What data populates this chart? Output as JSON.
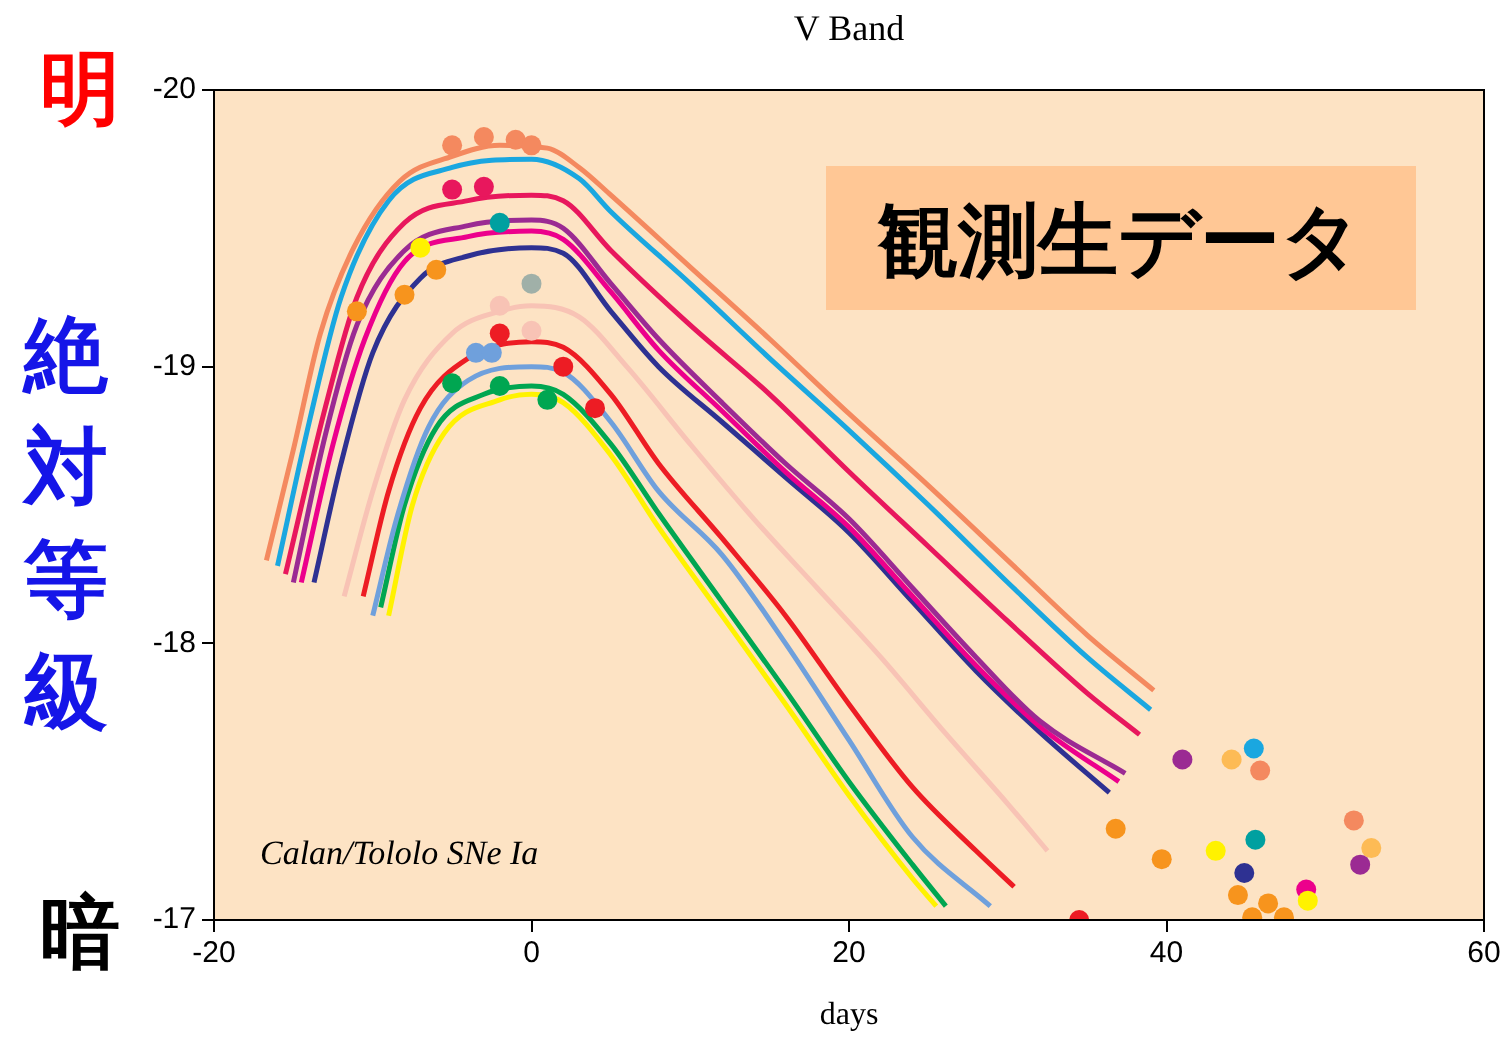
{
  "chart_data": {
    "type": "line",
    "title": "V Band",
    "xlabel": "days",
    "ylabel": "絶対等級",
    "annotations": [
      "観測生データ",
      "Calan/Tololo SNe Ia",
      "明",
      "暗"
    ],
    "xlim": [
      -20,
      60
    ],
    "xticks": [
      -20,
      0,
      20,
      40,
      60
    ],
    "ylim": [
      -17,
      -20
    ],
    "yticks": [
      -20,
      -19,
      -18,
      -17
    ],
    "marker": "none",
    "line_style": "solid",
    "series": [
      {
        "color": "#f4895f",
        "x": [
          -16.7,
          -15,
          -13.3,
          -11.2,
          -8.3,
          -5,
          -2,
          1,
          3,
          5,
          10,
          15,
          20,
          25,
          30,
          35,
          39.2
        ],
        "values": [
          -18.3,
          -18.7,
          -19.12,
          -19.43,
          -19.67,
          -19.76,
          -19.8,
          -19.79,
          -19.72,
          -19.62,
          -19.36,
          -19.1,
          -18.83,
          -18.57,
          -18.3,
          -18.03,
          -17.83
        ]
      },
      {
        "color": "#1aa7e0",
        "x": [
          -16,
          -14,
          -12,
          -9,
          -5,
          0,
          3,
          5,
          10,
          15,
          20,
          25,
          30,
          35,
          39
        ],
        "values": [
          -18.28,
          -18.8,
          -19.25,
          -19.6,
          -19.72,
          -19.75,
          -19.68,
          -19.56,
          -19.3,
          -19.03,
          -18.77,
          -18.5,
          -18.22,
          -17.95,
          -17.76
        ]
      },
      {
        "color": "#e8175d",
        "x": [
          -15.5,
          -13,
          -11,
          -8,
          -4,
          0,
          2,
          5,
          10,
          15,
          20,
          25,
          30,
          35,
          38.3
        ],
        "values": [
          -18.25,
          -18.85,
          -19.25,
          -19.52,
          -19.6,
          -19.62,
          -19.6,
          -19.42,
          -19.15,
          -18.9,
          -18.62,
          -18.35,
          -18.08,
          -17.82,
          -17.67
        ]
      },
      {
        "color": "#9b2a93",
        "x": [
          -15,
          -13,
          -11,
          -8,
          -4,
          0,
          2,
          5,
          8,
          12,
          16,
          20,
          24,
          28,
          32,
          37.4
        ],
        "values": [
          -18.22,
          -18.75,
          -19.15,
          -19.42,
          -19.51,
          -19.53,
          -19.5,
          -19.3,
          -19.1,
          -18.87,
          -18.65,
          -18.45,
          -18.2,
          -17.95,
          -17.72,
          -17.53
        ]
      },
      {
        "color": "#ec008c",
        "x": [
          -14.5,
          -12.5,
          -10.5,
          -8,
          -4,
          0,
          2,
          5,
          8,
          12,
          16,
          20,
          24,
          28,
          32,
          37
        ],
        "values": [
          -18.22,
          -18.72,
          -19.1,
          -19.38,
          -19.47,
          -19.49,
          -19.46,
          -19.27,
          -19.06,
          -18.84,
          -18.62,
          -18.42,
          -18.17,
          -17.92,
          -17.7,
          -17.5
        ]
      },
      {
        "color": "#2e3192",
        "x": [
          -13.7,
          -12,
          -10,
          -7,
          -4,
          0,
          2,
          5,
          8,
          12,
          16,
          20,
          24,
          28,
          32,
          36.4
        ],
        "values": [
          -18.22,
          -18.65,
          -19.05,
          -19.32,
          -19.4,
          -19.43,
          -19.41,
          -19.2,
          -19.0,
          -18.8,
          -18.6,
          -18.4,
          -18.15,
          -17.9,
          -17.68,
          -17.46
        ]
      },
      {
        "color": "#f8c3b5",
        "x": [
          -11.8,
          -10,
          -8,
          -5,
          -2,
          0,
          3,
          6,
          10,
          14,
          18,
          22,
          26,
          30,
          32.5
        ],
        "values": [
          -18.17,
          -18.55,
          -18.88,
          -19.12,
          -19.2,
          -19.22,
          -19.18,
          -19.0,
          -18.72,
          -18.45,
          -18.2,
          -17.95,
          -17.68,
          -17.42,
          -17.25
        ]
      },
      {
        "color": "#ed1c24",
        "x": [
          -10.6,
          -9,
          -7,
          -4,
          0,
          2,
          5,
          8,
          12,
          16,
          20,
          24,
          28,
          30.4
        ],
        "values": [
          -18.17,
          -18.55,
          -18.85,
          -19.03,
          -19.09,
          -19.07,
          -18.9,
          -18.65,
          -18.38,
          -18.1,
          -17.78,
          -17.48,
          -17.25,
          -17.12
        ]
      },
      {
        "color": "#6fa0dc",
        "x": [
          -10,
          -8.5,
          -6.5,
          -4,
          0,
          2,
          5,
          8,
          12,
          16,
          20,
          24,
          28.9
        ],
        "values": [
          -18.1,
          -18.45,
          -18.78,
          -18.95,
          -19.0,
          -18.98,
          -18.8,
          -18.55,
          -18.32,
          -18.0,
          -17.65,
          -17.3,
          -17.05
        ]
      },
      {
        "color": "#fff200",
        "x": [
          -9,
          -7.5,
          -5.5,
          -2,
          0,
          2,
          5,
          8,
          12,
          16,
          20,
          24,
          25.5
        ],
        "values": [
          -18.1,
          -18.5,
          -18.76,
          -18.88,
          -18.9,
          -18.87,
          -18.68,
          -18.42,
          -18.1,
          -17.78,
          -17.45,
          -17.15,
          -17.05
        ]
      },
      {
        "color": "#00a651",
        "x": [
          -9.5,
          -8,
          -6,
          -3,
          0,
          2,
          5,
          8,
          12,
          16,
          20,
          24,
          26.1
        ],
        "values": [
          -18.13,
          -18.5,
          -18.78,
          -18.9,
          -18.93,
          -18.9,
          -18.72,
          -18.47,
          -18.15,
          -17.83,
          -17.5,
          -17.2,
          -17.05
        ]
      },
      {
        "type": "scatter",
        "marker": "circle",
        "x": [
          -5,
          -3,
          -1,
          0,
          -5,
          -3,
          -2,
          -7,
          -11,
          -8,
          -6,
          0,
          -2,
          0,
          -2,
          2,
          4,
          -3.5,
          -2.5,
          -5,
          -2,
          1,
          41,
          44.1,
          45.5,
          45.9,
          36.8,
          39.7,
          43.1,
          45.6,
          44.9,
          44.5,
          46.4,
          45.4,
          47.4,
          48.8,
          48.9,
          51.8,
          52.9,
          52.2,
          34.5
        ],
        "values": [
          -19.8,
          -19.83,
          -19.82,
          -19.8,
          -19.64,
          -19.65,
          -19.52,
          -19.43,
          -19.2,
          -19.26,
          -19.35,
          -19.3,
          -19.22,
          -19.13,
          -19.12,
          -19.0,
          -18.85,
          -19.05,
          -19.05,
          -18.94,
          -18.93,
          -18.88,
          -17.58,
          -17.58,
          -17.62,
          -17.54,
          -17.33,
          -17.22,
          -17.25,
          -17.29,
          -17.17,
          -17.09,
          -17.06,
          -17.01,
          -17.01,
          -17.11,
          -17.07,
          -17.36,
          -17.26,
          -17.2,
          -17.0
        ],
        "colors": [
          "#f4895f",
          "#f4895f",
          "#f4895f",
          "#f4895f",
          "#e8175d",
          "#e8175d",
          "#00a0a0",
          "#fff200",
          "#f7941d",
          "#f7941d",
          "#f7941d",
          "#a0b0a8",
          "#f8c3b5",
          "#f8c3b5",
          "#ed1c24",
          "#ed1c24",
          "#ed1c24",
          "#6fa0dc",
          "#6fa0dc",
          "#00a651",
          "#00a651",
          "#00a651",
          "#9b2a93",
          "#fdbb55",
          "#1aa7e0",
          "#f4895f",
          "#f7941d",
          "#f7941d",
          "#fff200",
          "#00a0a0",
          "#2e3192",
          "#f7941d",
          "#f7941d",
          "#f7941d",
          "#f7941d",
          "#ec008c",
          "#fff200",
          "#f4895f",
          "#fdbb55",
          "#9b2a93",
          "#ed1c24"
        ]
      }
    ]
  }
}
